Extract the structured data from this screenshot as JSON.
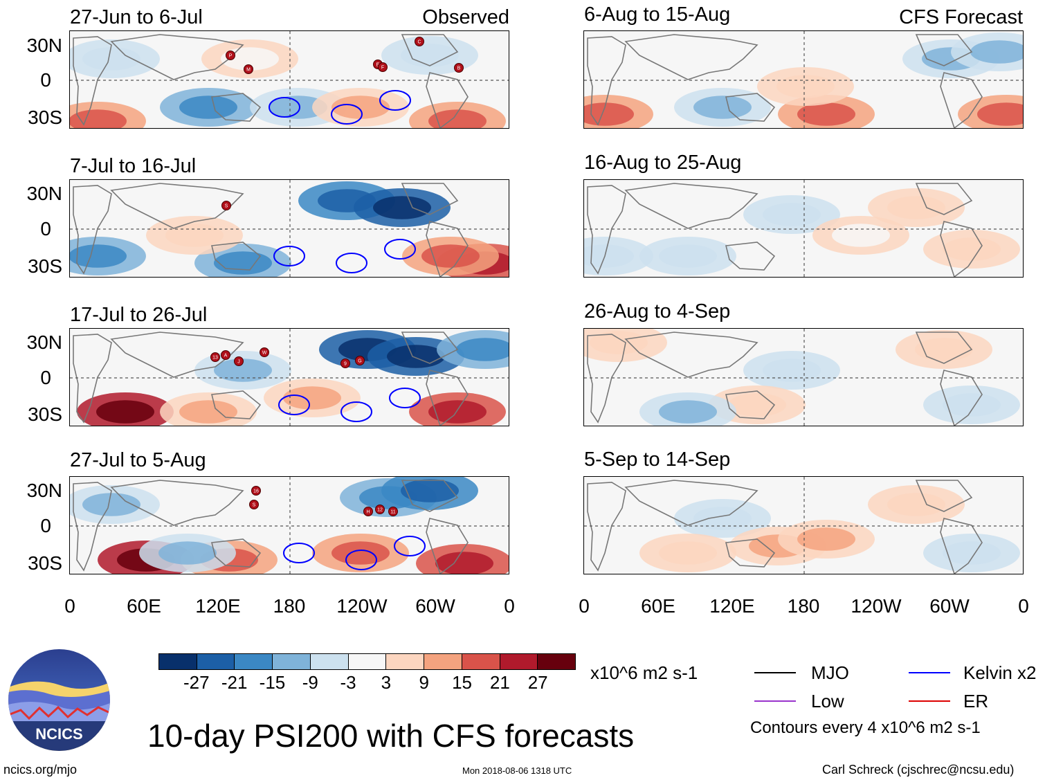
{
  "panels": {
    "left": [
      {
        "title": "27-Jun to 6-Jul",
        "tag": "Observed"
      },
      {
        "title": "7-Jul to 16-Jul",
        "tag": ""
      },
      {
        "title": "17-Jul to 26-Jul",
        "tag": ""
      },
      {
        "title": "27-Jul to 5-Aug",
        "tag": ""
      }
    ],
    "right": [
      {
        "title": "6-Aug to 15-Aug",
        "tag": "CFS Forecast"
      },
      {
        "title": "16-Aug to 25-Aug",
        "tag": ""
      },
      {
        "title": "26-Aug to 4-Sep",
        "tag": ""
      },
      {
        "title": "5-Sep to 14-Sep",
        "tag": ""
      }
    ]
  },
  "lat_labels": [
    "30N",
    "0",
    "30S"
  ],
  "lon_labels": [
    "0",
    "60E",
    "120E",
    "180",
    "120W",
    "60W",
    "0"
  ],
  "storms": [
    {
      "panel": 0,
      "ids": [
        "P",
        "M",
        "C",
        "E",
        "F",
        "B"
      ]
    },
    {
      "panel": 1,
      "ids": [
        "S"
      ]
    },
    {
      "panel": 2,
      "ids": [
        "13",
        "A",
        "J",
        "W",
        "9",
        "G"
      ]
    },
    {
      "panel": 3,
      "ids": [
        "16",
        "S",
        "H",
        "12",
        "11"
      ]
    }
  ],
  "colorbar": {
    "ticks": [
      "-27",
      "-21",
      "-15",
      "-9",
      "-3",
      "3",
      "9",
      "15",
      "21",
      "27"
    ],
    "colors": [
      "#08306b",
      "#1c5fa6",
      "#3b88c4",
      "#7fb3d9",
      "#cce1ef",
      "#f7f7f7",
      "#fcd6c0",
      "#f4a37f",
      "#d9534a",
      "#b01a2c",
      "#67000d"
    ],
    "units": "x10^6 m2 s-1"
  },
  "legend": {
    "items": [
      {
        "label": "MJO",
        "color": "#000000"
      },
      {
        "label": "Kelvin x2",
        "color": "#0000ff"
      },
      {
        "label": "Low",
        "color": "#9933cc"
      },
      {
        "label": "ER",
        "color": "#dd0000"
      }
    ],
    "contours_note": "Contours every 4 x10^6 m2 s-1"
  },
  "title": "10-day PSI200 with CFS forecasts",
  "logo_text": "NCICS",
  "footer": {
    "left": "ncics.org/mjo",
    "center": "Mon 2018-08-06 1318 UTC",
    "right": "Carl Schreck (cjschrec@ncsu.edu)"
  }
}
